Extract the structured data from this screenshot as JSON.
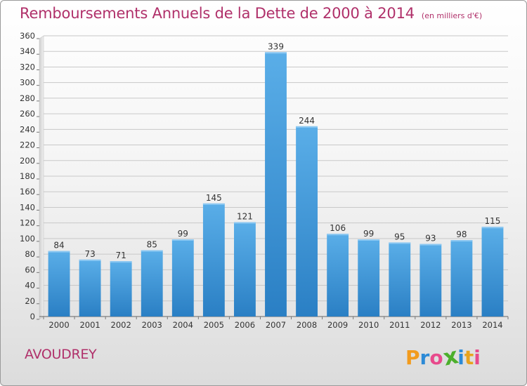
{
  "header": {
    "title": "Remboursements Annuels de la Dette de 2000 à 2014",
    "unit": "(en milliers d'€)"
  },
  "footer": {
    "town": "AVOUDREY",
    "logo": [
      "P",
      "r",
      "o",
      "x",
      "i",
      "t",
      "i"
    ]
  },
  "colors": {
    "title": "#b0306a",
    "bar_top": "#5aaee8",
    "bar_bottom": "#2a7fc4",
    "logo": [
      "#f29b1d",
      "#2c8ad6",
      "#e84a8c",
      "#4caf2c",
      "#2c8ad6",
      "#e8a31d",
      "#e84a8c"
    ]
  },
  "chart_data": {
    "type": "bar",
    "categories": [
      "2000",
      "2001",
      "2002",
      "2003",
      "2004",
      "2005",
      "2006",
      "2007",
      "2008",
      "2009",
      "2010",
      "2011",
      "2012",
      "2013",
      "2014"
    ],
    "values": [
      84,
      73,
      71,
      85,
      99,
      145,
      121,
      339,
      244,
      106,
      99,
      95,
      93,
      98,
      115
    ],
    "data_labels": [
      "84",
      "73",
      "71",
      "85",
      "99",
      "145",
      "121",
      "339",
      "244",
      "106",
      "99",
      "95",
      "93",
      "98",
      "115"
    ],
    "ylim": [
      0,
      360
    ],
    "yticks": [
      "0",
      "20",
      "40",
      "60",
      "80",
      "100",
      "120",
      "140",
      "160",
      "180",
      "200",
      "220",
      "240",
      "260",
      "280",
      "300",
      "320",
      "340",
      "360"
    ],
    "grid": true,
    "xlabel": "",
    "ylabel": ""
  }
}
